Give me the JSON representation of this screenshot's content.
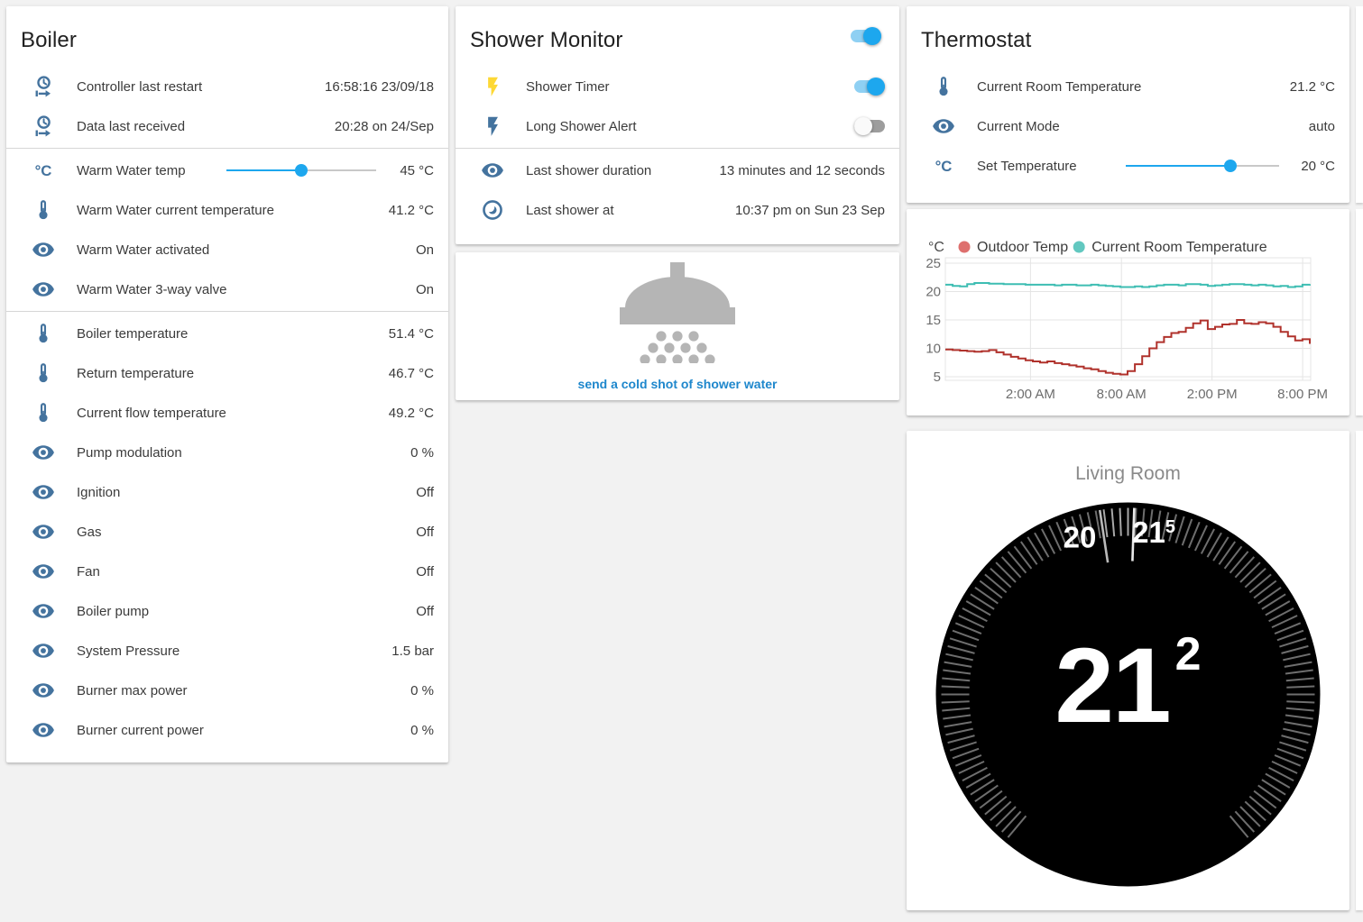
{
  "page": {
    "background": "#f2f2f2"
  },
  "colors": {
    "icon_blue": "#44739e",
    "flash_yellow": "#fdd835",
    "accent_blue": "#1da7ee",
    "link_blue": "#1e87cc",
    "toggle_off_track": "#9d9d9d"
  },
  "boiler": {
    "title": "Boiler",
    "rows": [
      {
        "icon": "clock-start",
        "label": "Controller last restart",
        "value": "16:58:16 23/09/18"
      },
      {
        "icon": "clock-start",
        "label": "Data last received",
        "value": "20:28 on 24/Sep",
        "divider_after": true
      },
      {
        "icon": "temperature-celsius",
        "label": "Warm Water temp",
        "value": "45 °C",
        "slider": 0.5
      },
      {
        "icon": "thermometer",
        "label": "Warm Water current temperature",
        "value": "41.2 °C"
      },
      {
        "icon": "eye",
        "label": "Warm Water activated",
        "value": "On"
      },
      {
        "icon": "eye",
        "label": "Warm Water 3-way valve",
        "value": "On",
        "divider_after": true
      },
      {
        "icon": "thermometer",
        "label": "Boiler temperature",
        "value": "51.4 °C"
      },
      {
        "icon": "thermometer",
        "label": "Return temperature",
        "value": "46.7 °C"
      },
      {
        "icon": "thermometer",
        "label": "Current flow temperature",
        "value": "49.2 °C"
      },
      {
        "icon": "eye",
        "label": "Pump modulation",
        "value": "0 %"
      },
      {
        "icon": "eye",
        "label": "Ignition",
        "value": "Off"
      },
      {
        "icon": "eye",
        "label": "Gas",
        "value": "Off"
      },
      {
        "icon": "eye",
        "label": "Fan",
        "value": "Off"
      },
      {
        "icon": "eye",
        "label": "Boiler pump",
        "value": "Off"
      },
      {
        "icon": "eye",
        "label": "System Pressure",
        "value": "1.5 bar"
      },
      {
        "icon": "eye",
        "label": "Burner max power",
        "value": "0 %"
      },
      {
        "icon": "eye",
        "label": "Burner current power",
        "value": "0 %"
      }
    ]
  },
  "shower_monitor": {
    "title": "Shower Monitor",
    "title_toggle": "on",
    "rows": [
      {
        "icon": "flash-yellow",
        "label": "Shower Timer",
        "toggle": "on"
      },
      {
        "icon": "flash-blue",
        "label": "Long Shower Alert",
        "toggle": "off",
        "divider_after": true
      },
      {
        "icon": "eye",
        "label": "Last shower duration",
        "value": "13 minutes and 12 seconds"
      },
      {
        "icon": "clock",
        "label": "Last shower at",
        "value": "10:37 pm on Sun 23 Sep"
      }
    ]
  },
  "shower_action": {
    "icon": "shower-head",
    "label": "send a cold shot of shower water"
  },
  "thermostat": {
    "title": "Thermostat",
    "rows": [
      {
        "icon": "thermometer",
        "label": "Current Room Temperature",
        "value": "21.2 °C"
      },
      {
        "icon": "eye",
        "label": "Current Mode",
        "value": "auto"
      },
      {
        "icon": "temperature-celsius",
        "label": "Set Temperature",
        "value": "20 °C",
        "slider": 0.68
      }
    ]
  },
  "chart_data": {
    "type": "line",
    "unit": "°C",
    "ylim": [
      5,
      25
    ],
    "yticks": [
      5,
      10,
      15,
      20,
      25
    ],
    "grid": true,
    "legend_position": "top",
    "x_ticks": [
      {
        "label": "2:00 AM",
        "f": 0.233
      },
      {
        "label": "8:00 AM",
        "f": 0.482
      },
      {
        "label": "2:00 PM",
        "f": 0.73
      },
      {
        "label": "8:00 PM",
        "f": 0.978
      }
    ],
    "series": [
      {
        "name": "Outdoor Temp",
        "line_color": "#b0322c",
        "dot_color": "#de706e",
        "values": [
          9.8,
          9.7,
          9.6,
          9.5,
          9.4,
          9.5,
          9.7,
          9.3,
          8.9,
          8.5,
          8.2,
          7.9,
          7.7,
          7.5,
          7.7,
          7.4,
          7.2,
          7.0,
          6.8,
          6.5,
          6.3,
          6.0,
          5.7,
          5.5,
          5.4,
          6.0,
          7.2,
          8.6,
          10.0,
          11.1,
          12.0,
          12.7,
          12.9,
          13.6,
          14.4,
          14.9,
          13.4,
          13.8,
          14.2,
          14.3,
          15.0,
          14.4,
          14.3,
          14.6,
          14.4,
          13.8,
          12.9,
          12.1,
          11.4,
          11.6,
          10.8
        ]
      },
      {
        "name": "Current Room Temperature",
        "line_color": "#3dbdb2",
        "dot_color": "#62c8c0",
        "values": [
          21.2,
          21.0,
          20.9,
          21.3,
          21.5,
          21.5,
          21.4,
          21.4,
          21.3,
          21.3,
          21.3,
          21.2,
          21.2,
          21.2,
          21.2,
          21.1,
          21.2,
          21.2,
          21.1,
          21.1,
          21.2,
          21.1,
          21.0,
          20.9,
          20.8,
          20.8,
          20.9,
          20.8,
          20.9,
          21.1,
          21.2,
          21.2,
          21.1,
          21.3,
          21.3,
          21.2,
          21.0,
          21.1,
          21.2,
          21.3,
          21.3,
          21.2,
          21.1,
          21.2,
          21.1,
          20.9,
          21.0,
          20.8,
          20.9,
          21.2,
          21.3
        ]
      }
    ]
  },
  "nest": {
    "room": "Living Room",
    "current_temp_main": "21",
    "current_temp_sup": "2",
    "scale_labels": [
      {
        "text": "20",
        "sup": "",
        "bearing": -17
      },
      {
        "text": "21",
        "sup": "5",
        "bearing": 9
      }
    ],
    "indicator_bearings": [
      -8.7,
      1.9
    ]
  }
}
